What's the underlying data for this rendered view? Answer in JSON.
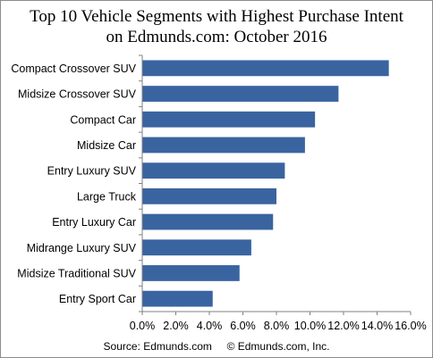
{
  "chart_data": {
    "type": "bar",
    "orientation": "horizontal",
    "title_lines": [
      "Top 10 Vehicle Segments with Highest Purchase Intent",
      "on Edmunds.com:  October 2016"
    ],
    "categories": [
      "Compact Crossover SUV",
      "Midsize Crossover SUV",
      "Compact Car",
      "Midsize Car",
      "Entry Luxury SUV",
      "Large Truck",
      "Entry Luxury Car",
      "Midrange Luxury SUV",
      "Midsize Traditional SUV",
      "Entry Sport Car"
    ],
    "values": [
      14.7,
      11.7,
      10.3,
      9.7,
      8.5,
      8.0,
      7.8,
      6.5,
      5.8,
      4.2
    ],
    "value_unit": "%",
    "xlim": [
      0,
      16
    ],
    "x_ticks": [
      "0.0%",
      "2.0%",
      "4.0%",
      "6.0%",
      "8.0%",
      "10.0%",
      "12.0%",
      "14.0%",
      "16.0%"
    ],
    "grid": false,
    "legend": "none",
    "bar_color": "#3a64a0",
    "source": "Source: Edmunds.com     © Edmunds.com, Inc."
  }
}
